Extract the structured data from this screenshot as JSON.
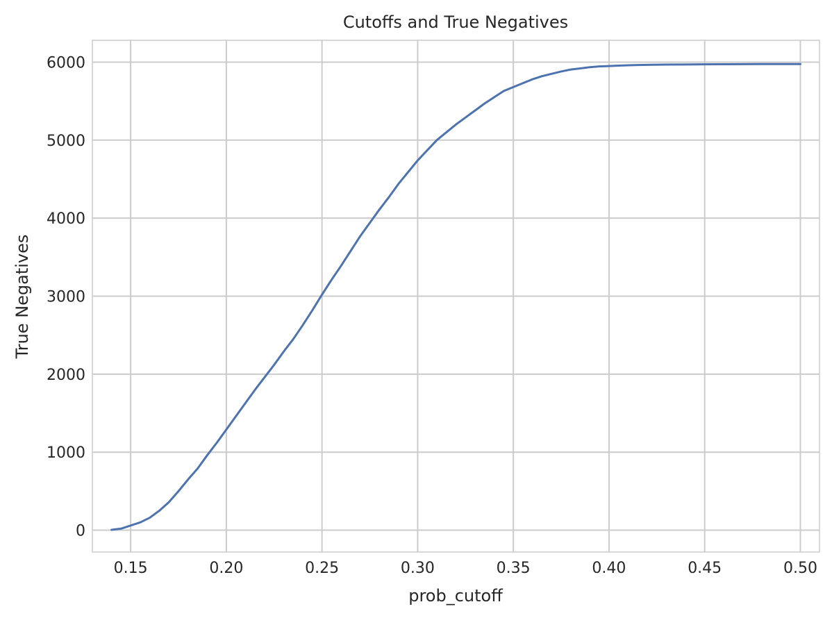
{
  "chart_data": {
    "type": "line",
    "title": "Cutoffs and True Negatives",
    "xlabel": "prob_cutoff",
    "ylabel": "True Negatives",
    "xlim": [
      0.13,
      0.51
    ],
    "ylim": [
      -280,
      6280
    ],
    "xticks": [
      0.15,
      0.2,
      0.25,
      0.3,
      0.35,
      0.4,
      0.45,
      0.5
    ],
    "xtick_labels": [
      "0.15",
      "0.20",
      "0.25",
      "0.30",
      "0.35",
      "0.40",
      "0.45",
      "0.50"
    ],
    "yticks": [
      0,
      1000,
      2000,
      3000,
      4000,
      5000,
      6000
    ],
    "ytick_labels": [
      "0",
      "1000",
      "2000",
      "3000",
      "4000",
      "5000",
      "6000"
    ],
    "grid": true,
    "line_color": "#4c72b0",
    "grid_color": "#cccccc",
    "series": [
      {
        "x": [
          0.14,
          0.145,
          0.15,
          0.155,
          0.16,
          0.165,
          0.17,
          0.175,
          0.18,
          0.185,
          0.19,
          0.195,
          0.2,
          0.205,
          0.21,
          0.215,
          0.22,
          0.225,
          0.23,
          0.235,
          0.24,
          0.245,
          0.25,
          0.255,
          0.26,
          0.265,
          0.27,
          0.275,
          0.28,
          0.285,
          0.29,
          0.295,
          0.3,
          0.305,
          0.31,
          0.315,
          0.32,
          0.325,
          0.33,
          0.335,
          0.34,
          0.345,
          0.35,
          0.355,
          0.36,
          0.365,
          0.37,
          0.375,
          0.38,
          0.385,
          0.39,
          0.395,
          0.4,
          0.405,
          0.41,
          0.415,
          0.42,
          0.43,
          0.44,
          0.45,
          0.46,
          0.47,
          0.48,
          0.49,
          0.5
        ],
        "values": [
          5,
          20,
          60,
          100,
          160,
          250,
          360,
          500,
          650,
          790,
          960,
          1120,
          1290,
          1460,
          1630,
          1800,
          1960,
          2120,
          2290,
          2450,
          2630,
          2820,
          3020,
          3210,
          3390,
          3580,
          3770,
          3940,
          4110,
          4270,
          4440,
          4590,
          4740,
          4870,
          5000,
          5100,
          5200,
          5290,
          5380,
          5470,
          5550,
          5630,
          5680,
          5730,
          5780,
          5820,
          5850,
          5880,
          5905,
          5920,
          5935,
          5945,
          5950,
          5955,
          5960,
          5963,
          5965,
          5968,
          5970,
          5972,
          5973,
          5974,
          5975,
          5975,
          5975
        ]
      }
    ]
  }
}
